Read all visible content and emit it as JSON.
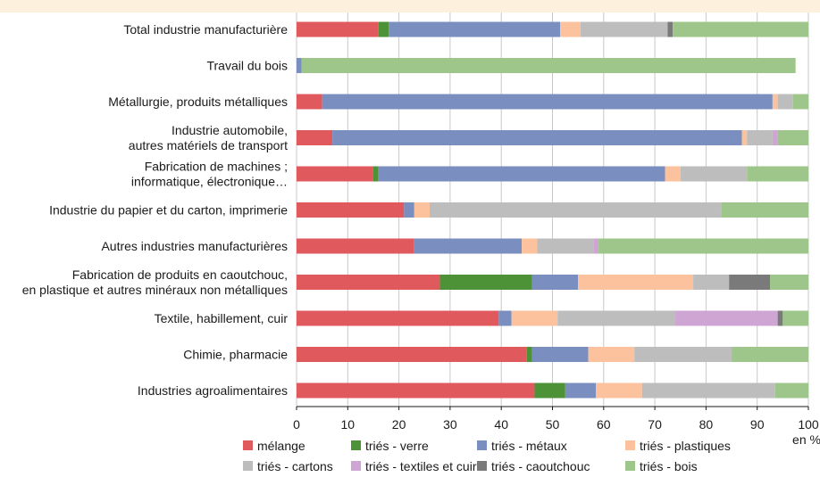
{
  "chart_data": {
    "type": "bar",
    "orientation": "horizontal",
    "stacked": true,
    "categories": [
      [
        "Total industrie manufacturière"
      ],
      [
        "Travail du bois"
      ],
      [
        "Métallurgie, produits métalliques"
      ],
      [
        "Industrie automobile,",
        "autres matériels de transport"
      ],
      [
        "Fabrication de machines ;",
        "informatique, électronique…"
      ],
      [
        "Industrie du papier et du carton, imprimerie"
      ],
      [
        "Autres industries manufacturières"
      ],
      [
        "Fabrication de produits en caoutchouc,",
        "en plastique et autres minéraux non métalliques"
      ],
      [
        "Textile, habillement, cuir"
      ],
      [
        "Chimie, pharmacie"
      ],
      [
        "Industries agroalimentaires"
      ]
    ],
    "series": [
      {
        "name": "mélange",
        "color": "#e0595c",
        "values": [
          16,
          0,
          5,
          7,
          15,
          21,
          23,
          28,
          39.5,
          45,
          46.5
        ]
      },
      {
        "name": "triés - verre",
        "color": "#4e9238",
        "values": [
          2,
          0,
          0,
          0,
          1,
          0,
          0,
          18,
          0,
          1,
          6
        ]
      },
      {
        "name": "triés - métaux",
        "color": "#7a8fc0",
        "values": [
          33.5,
          1,
          88,
          80,
          56,
          2,
          21,
          9,
          2.5,
          11,
          6
        ]
      },
      {
        "name": "triés - plastiques",
        "color": "#fbc29d",
        "values": [
          4,
          0,
          1,
          1,
          3,
          3,
          3,
          22.5,
          9,
          9,
          9
        ]
      },
      {
        "name": "triés - cartons",
        "color": "#bdbdbd",
        "values": [
          17,
          0,
          3,
          5,
          13,
          57,
          11,
          7,
          23,
          19,
          26
        ]
      },
      {
        "name": "triés - textiles et cuir",
        "color": "#cfa6d3",
        "values": [
          0,
          0,
          0,
          1,
          0,
          0,
          1,
          0,
          20,
          0,
          0
        ]
      },
      {
        "name": "triés - caoutchouc",
        "color": "#7a7a7a",
        "values": [
          1,
          0,
          0,
          0,
          0,
          0,
          0,
          8,
          1,
          0,
          0
        ]
      },
      {
        "name": "triés - bois",
        "color": "#9ec68a",
        "values": [
          26.5,
          96.5,
          3,
          6,
          12,
          17,
          41,
          7.5,
          5,
          15,
          6.5
        ]
      }
    ],
    "xlim": [
      0,
      100
    ],
    "xticks": [
      "0",
      "10",
      "20",
      "30",
      "40",
      "50",
      "60",
      "70",
      "80",
      "90",
      "100"
    ],
    "xunit": "en %",
    "grid": true,
    "legend_position": "bottom"
  }
}
